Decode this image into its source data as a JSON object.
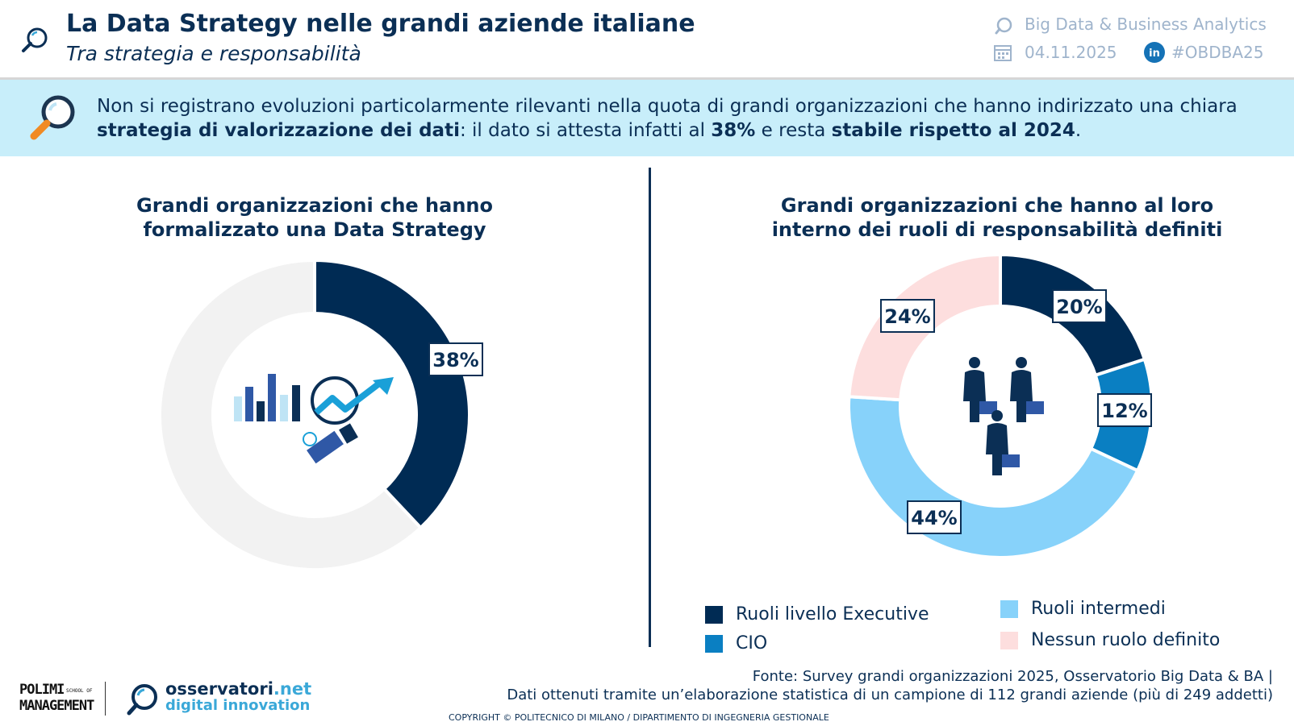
{
  "header": {
    "title": "La Data Strategy nelle grandi aziende italiane",
    "subtitle": "Tra strategia e responsabilità",
    "program": "Big Data & Business Analytics",
    "date": "04.11.2025",
    "hashtag": "#OBDBA25",
    "icons": [
      "magnifier-icon",
      "chat-icon",
      "calendar-icon",
      "linkedin-icon"
    ]
  },
  "banner": {
    "t1": "Non si registrano evoluzioni particolarmente rilevanti nella quota di grandi organizzazioni che hanno indirizzato una chiara ",
    "b1": "strategia di valorizzazione dei dati",
    "t2": ": il dato si attesta infatti al ",
    "b2": "38%",
    "t3": " e resta ",
    "b3": "stabile rispetto al 2024",
    "t4": "."
  },
  "colors": {
    "navy": "#002b54",
    "blue": "#0a7fc2",
    "light_blue": "#87d2fa",
    "pink": "#fddede",
    "grey": "#f2f2f2"
  },
  "chart_data": [
    {
      "type": "pie",
      "title": "Grandi organizzazioni che hanno formalizzato una Data Strategy",
      "slices": [
        {
          "value": 38,
          "label": "38%",
          "color": "#002b54"
        },
        {
          "value": 62,
          "label": "",
          "color": "#f2f2f2"
        }
      ],
      "center_icon": "data-analytics-icon"
    },
    {
      "type": "pie",
      "title": "Grandi organizzazioni che hanno al loro interno dei ruoli di responsabilità definiti",
      "slices": [
        {
          "name": "Ruoli livello Executive",
          "value": 20,
          "label": "20%",
          "color": "#002b54"
        },
        {
          "name": "CIO",
          "value": 12,
          "label": "12%",
          "color": "#0a7fc2"
        },
        {
          "name": "Ruoli intermedi",
          "value": 44,
          "label": "44%",
          "color": "#87d2fa"
        },
        {
          "name": "Nessun ruolo definito",
          "value": 24,
          "label": "24%",
          "color": "#fddede"
        }
      ],
      "legend_placement": "bottom",
      "center_icon": "business-people-icon"
    }
  ],
  "footer": {
    "source_line1": "Fonte: Survey grandi organizzazioni 2025, Osservatorio Big Data & BA |",
    "source_line2": "Dati ottenuti tramite un’elaborazione statistica di un campione di 112 grandi aziende (più di 249 addetti)",
    "copyright": "COPYRIGHT © POLITECNICO DI MILANO / DIPARTIMENTO DI INGEGNERIA GESTIONALE",
    "polimi_line1": "POLIMI",
    "polimi_line2": "MANAGEMENT",
    "polimi_small1": "SCHOOL OF",
    "osservatori_main": "osservatori",
    "osservatori_dot": ".net",
    "osservatori_sub": "digital innovation"
  }
}
